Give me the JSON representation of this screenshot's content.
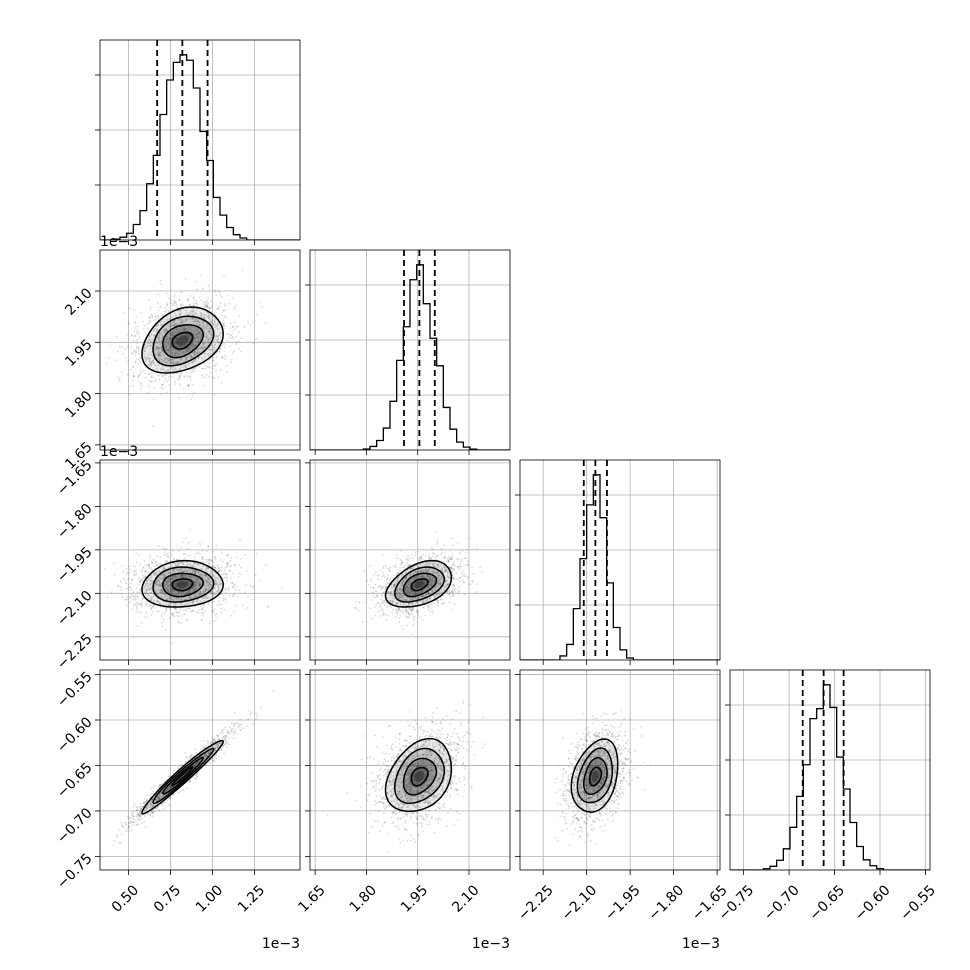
{
  "chart_data": {
    "type": "corner",
    "parameters": [
      {
        "index": 0,
        "mean": 0.82,
        "sd": 0.12,
        "offset": "1e−3",
        "ticks": [
          {
            "v": 0.5,
            "label": "0.50"
          },
          {
            "v": 0.75,
            "label": "0.75"
          },
          {
            "v": 1.0,
            "label": "1.00"
          },
          {
            "v": 1.25,
            "label": "1.25"
          }
        ],
        "range": [
          0.33,
          1.52
        ],
        "quantiles": [
          0.67,
          0.82,
          0.97
        ]
      },
      {
        "index": 1,
        "mean": 1.955,
        "sd": 0.048,
        "offset": "1e−3",
        "ticks": [
          {
            "v": 1.65,
            "label": "1.65"
          },
          {
            "v": 1.8,
            "label": "1.80"
          },
          {
            "v": 1.95,
            "label": "1.95"
          },
          {
            "v": 2.1,
            "label": "2.10"
          }
        ],
        "range": [
          1.635,
          2.22
        ],
        "quantiles": [
          1.91,
          1.955,
          2.0
        ]
      },
      {
        "index": 2,
        "mean": -2.07,
        "sd": 0.04,
        "offset": "1e−3",
        "ticks": [
          {
            "v": -2.25,
            "label": "−2.25"
          },
          {
            "v": -2.1,
            "label": "−2.10"
          },
          {
            "v": -1.95,
            "label": "−1.95"
          },
          {
            "v": -1.8,
            "label": "−1.80"
          },
          {
            "v": -1.65,
            "label": "−1.65"
          }
        ],
        "range": [
          -2.33,
          -1.64
        ],
        "quantiles": [
          -2.11,
          -2.07,
          -2.03
        ]
      },
      {
        "index": 3,
        "mean": -0.662,
        "sd": 0.02,
        "offset": "",
        "ticks": [
          {
            "v": -0.75,
            "label": "−0.75"
          },
          {
            "v": -0.7,
            "label": "−0.70"
          },
          {
            "v": -0.65,
            "label": "−0.65"
          },
          {
            "v": -0.6,
            "label": "−0.60"
          },
          {
            "v": -0.55,
            "label": "−0.55"
          }
        ],
        "range": [
          -0.765,
          -0.545
        ],
        "quantiles": [
          -0.685,
          -0.662,
          -0.64
        ]
      }
    ],
    "correlations": [
      {
        "pair": [
          0,
          1
        ],
        "rho": 0.3
      },
      {
        "pair": [
          0,
          2
        ],
        "rho": 0.1
      },
      {
        "pair": [
          1,
          2
        ],
        "rho": 0.4
      },
      {
        "pair": [
          0,
          3
        ],
        "rho": 0.97
      },
      {
        "pair": [
          1,
          3
        ],
        "rho": 0.3
      },
      {
        "pair": [
          2,
          3
        ],
        "rho": 0.3
      }
    ],
    "contour_levels_sigma": [
      0.5,
      1.0,
      1.5,
      2.0
    ],
    "grid": true,
    "title": "",
    "legend": "none"
  }
}
